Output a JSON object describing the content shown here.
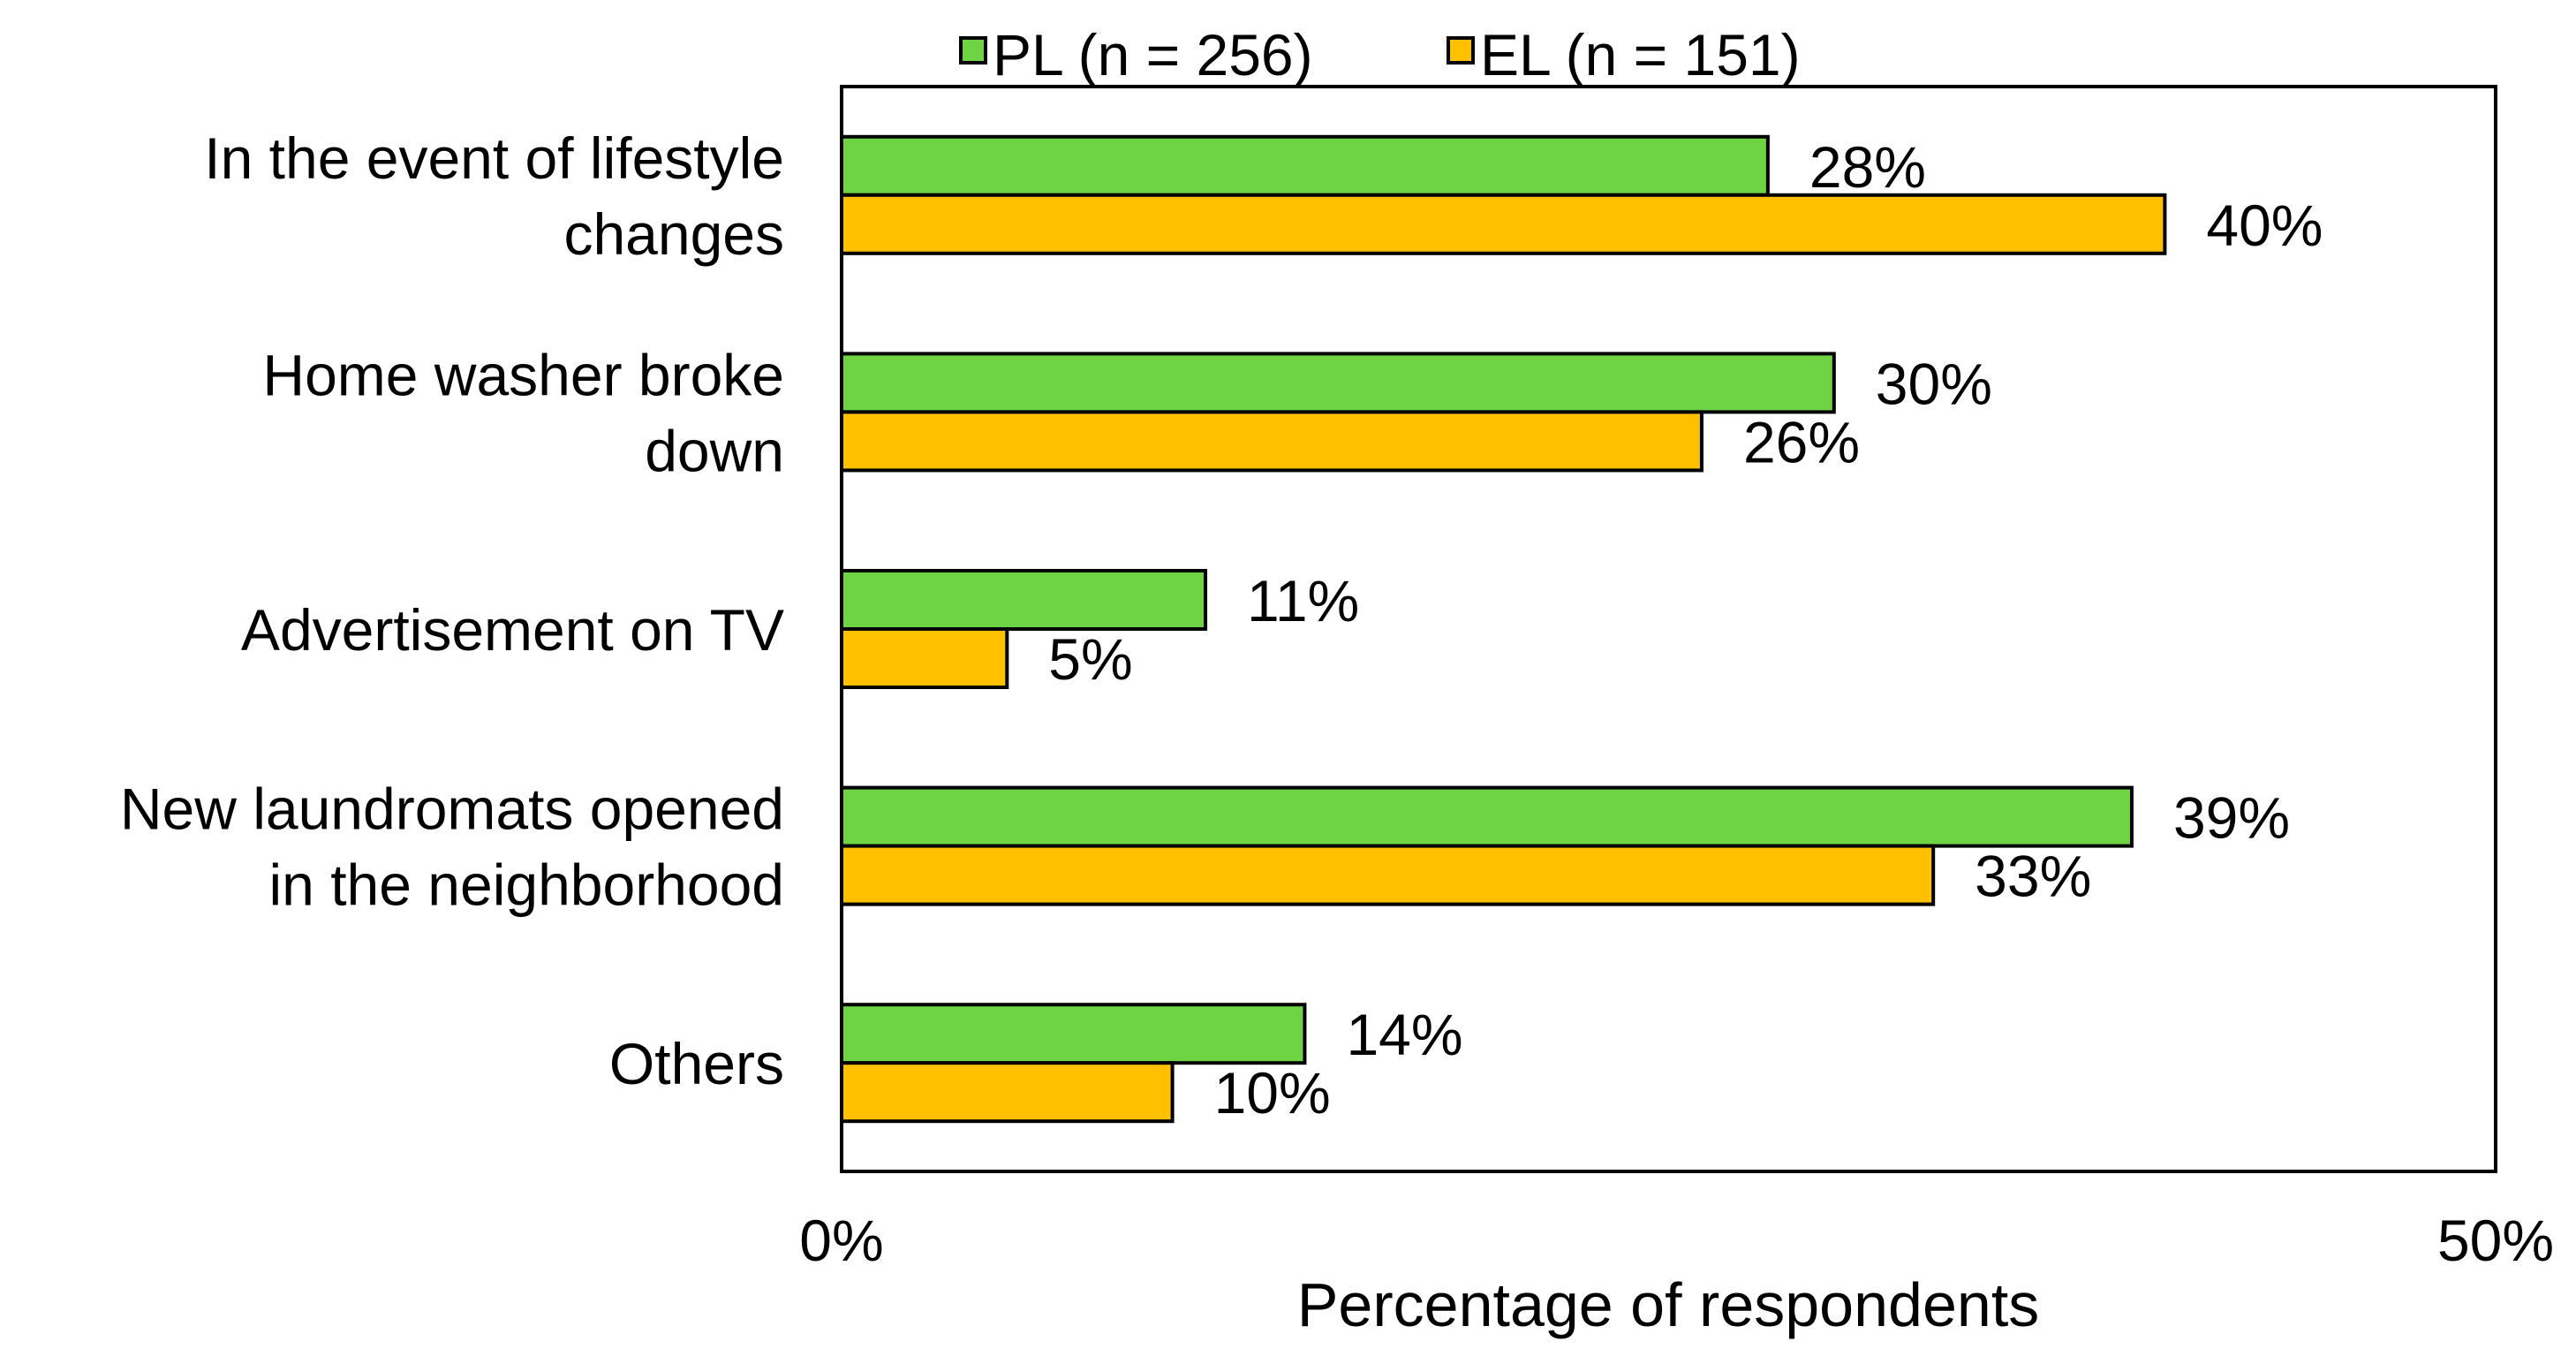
{
  "chart_data": {
    "type": "bar",
    "orientation": "horizontal",
    "title": "",
    "xlabel": "Percentage of respondents",
    "ylabel": "",
    "xlim": [
      0,
      50
    ],
    "x_ticks": [
      "0%",
      "50%"
    ],
    "grid": false,
    "legend_position": "top",
    "categories": [
      "In the event of lifestyle changes",
      "Home washer broke down",
      "Advertisement on TV",
      "New laundromats opened in the neighborhood",
      "Others"
    ],
    "category_label_lines": [
      [
        "In the event of lifestyle",
        "changes"
      ],
      [
        "Home washer broke",
        "down"
      ],
      [
        "Advertisement on TV"
      ],
      [
        "New laundromats opened",
        "in the neighborhood"
      ],
      [
        "Others"
      ]
    ],
    "series": [
      {
        "name": "PL (n = 256)",
        "color": "#6ed444",
        "values": [
          28,
          30,
          11,
          39,
          14
        ],
        "labels": [
          "28%",
          "30%",
          "11%",
          "39%",
          "14%"
        ]
      },
      {
        "name": "EL (n = 151)",
        "color": "#ffc000",
        "values": [
          40,
          26,
          5,
          33,
          10
        ],
        "labels": [
          "40%",
          "26%",
          "5%",
          "33%",
          "10%"
        ]
      }
    ]
  }
}
